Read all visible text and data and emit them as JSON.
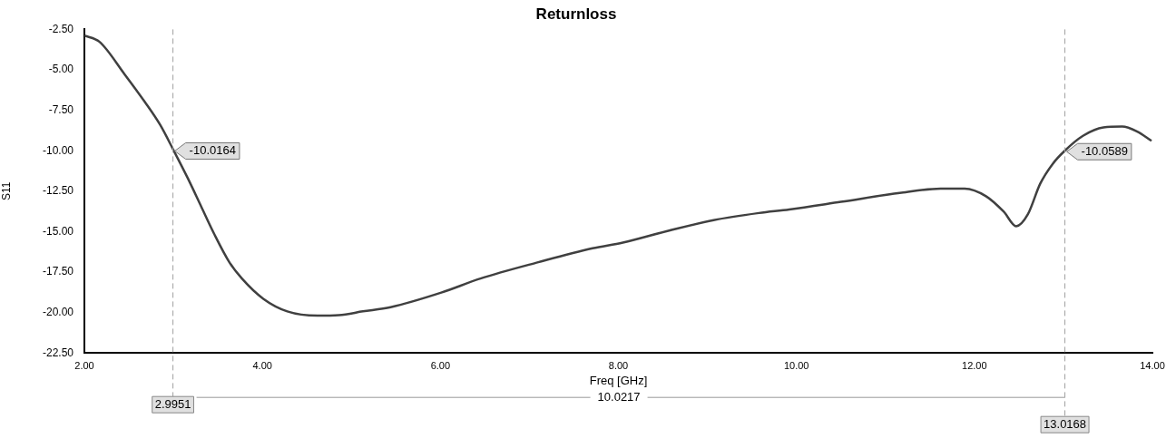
{
  "chart_data": {
    "type": "line",
    "title": "Returnloss",
    "xlabel": "Freq [GHz]",
    "ylabel": "S11",
    "x": [
      2,
      2.17,
      2.45,
      2.68,
      2.85,
      3.0,
      3.16,
      3.31,
      3.46,
      3.63,
      3.77,
      4.01,
      4.28,
      4.62,
      4.86,
      5.13,
      5.44,
      6.01,
      6.45,
      7.1,
      7.71,
      8.05,
      8.56,
      9.07,
      9.58,
      9.92,
      10.5,
      11.18,
      11.62,
      11.89,
      12.13,
      12.33,
      12.47,
      12.6,
      12.74,
      12.88,
      13.01,
      13.22,
      13.45,
      13.66,
      13.83,
      13.99
    ],
    "series": [
      {
        "color": "#404040",
        "values": [
          -2.88,
          -3.27,
          -5.26,
          -6.99,
          -8.39,
          -9.95,
          -11.68,
          -13.42,
          -15.16,
          -16.9,
          -17.9,
          -19.15,
          -19.93,
          -20.19,
          -20.16,
          -19.93,
          -19.67,
          -18.77,
          -17.9,
          -16.89,
          -16.03,
          -15.68,
          -14.95,
          -14.29,
          -13.85,
          -13.63,
          -13.16,
          -12.6,
          -12.34,
          -12.34,
          -12.81,
          -13.77,
          -14.67,
          -13.94,
          -12.03,
          -10.81,
          -10.03,
          -9.08,
          -8.56,
          -8.51,
          -8.82,
          -9.39
        ]
      }
    ],
    "xlim": [
      2,
      14
    ],
    "xticks": [
      {
        "value": 2,
        "label": "2.00"
      },
      {
        "value": 4,
        "label": "4.00"
      },
      {
        "value": 6,
        "label": "6.00"
      },
      {
        "value": 8,
        "label": "8.00"
      },
      {
        "value": 10,
        "label": "10.00"
      },
      {
        "value": 12,
        "label": "12.00"
      },
      {
        "value": 14,
        "label": "14.00"
      }
    ],
    "ylim": [
      -22.5,
      -2.5
    ],
    "yticks": [
      {
        "value": -2.5,
        "label": "-2.50"
      },
      {
        "value": -5,
        "label": "-5.00"
      },
      {
        "value": -7.5,
        "label": "-7.50"
      },
      {
        "value": -10,
        "label": "-10.00"
      },
      {
        "value": -12.5,
        "label": "-12.50"
      },
      {
        "value": -15,
        "label": "-15.00"
      },
      {
        "value": -17.5,
        "label": "-17.50"
      },
      {
        "value": -20,
        "label": "-20.00"
      },
      {
        "value": -22.5,
        "label": "-22.50"
      }
    ],
    "ref_lines": [
      {
        "axis": "x",
        "value": 2.9951,
        "label": "2.9951",
        "color": "#a0a0a0",
        "line_style": "dashed"
      },
      {
        "axis": "x",
        "value": 13.0168,
        "label": "13.0168",
        "color": "#a0a0a0",
        "line_style": "dashed"
      }
    ],
    "annotations": [
      {
        "text": "-10.0164",
        "x": 2.9951,
        "y": -10.0164
      },
      {
        "text": "-10.0589",
        "x": 13.0168,
        "y": -10.0589
      },
      "10.0217"
    ],
    "grid": false,
    "legend": false,
    "marker": "none",
    "line_style": "solid"
  }
}
